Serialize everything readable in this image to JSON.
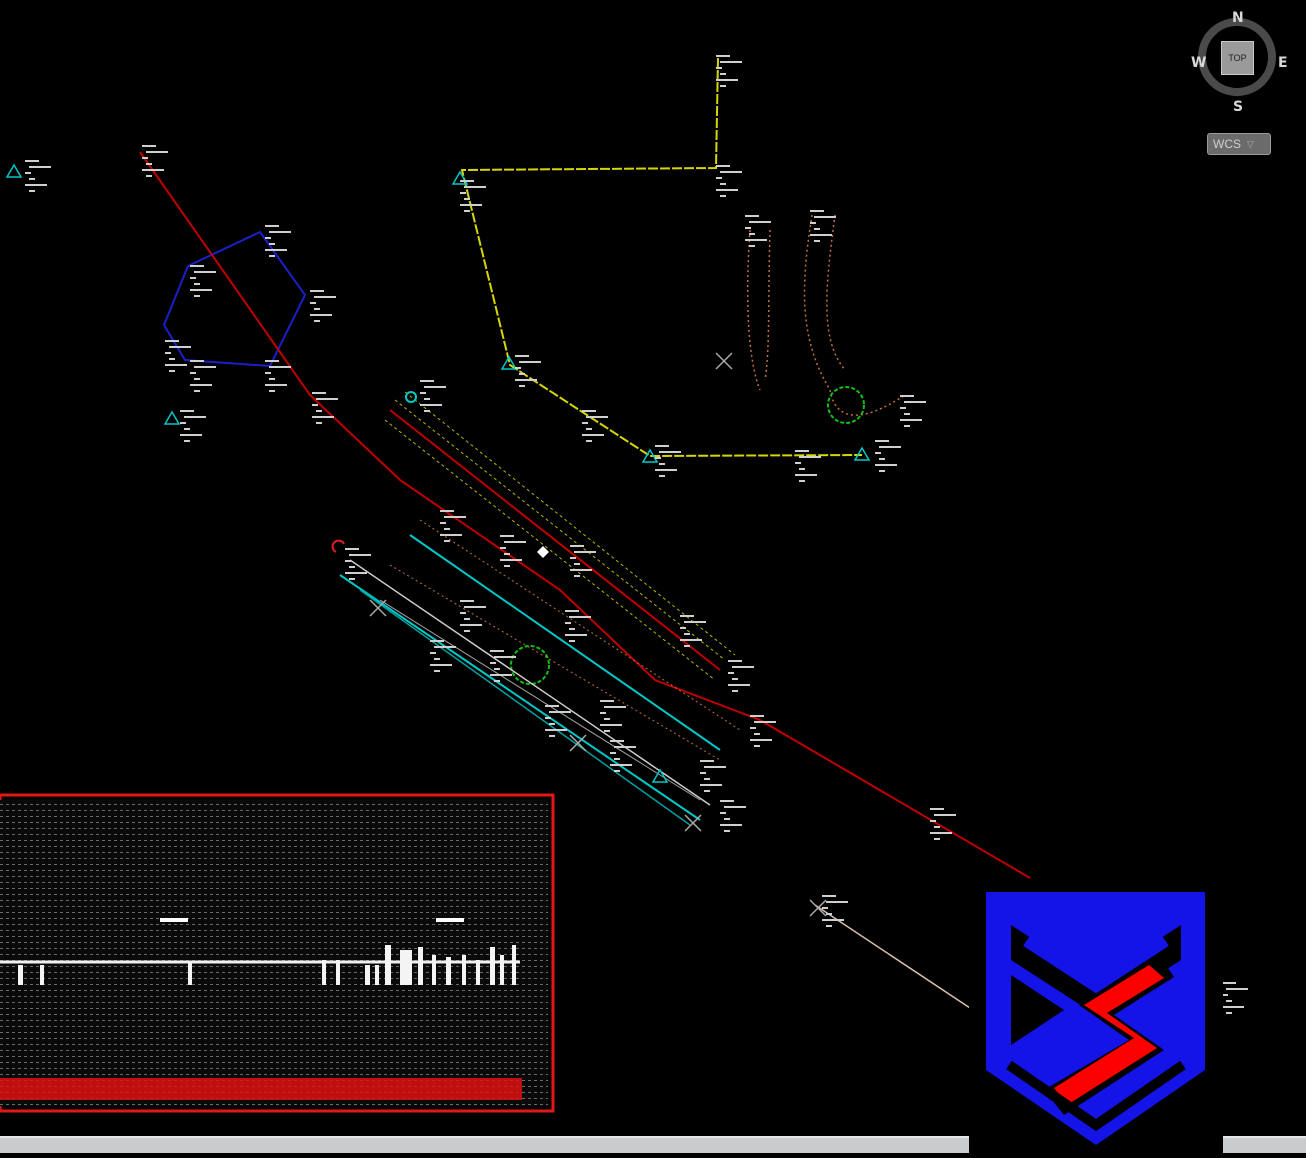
{
  "viewcube": {
    "north": "N",
    "south": "S",
    "east": "E",
    "west": "W",
    "face": "TOP"
  },
  "coordinate_system": {
    "label": "WCS"
  },
  "colors": {
    "background": "#000000",
    "blue_boundary": "#1a20c8",
    "red_route": "#c00000",
    "yellow_traverse": "#d6d600",
    "cyan": "#00c8c8",
    "green_circle": "#10c010",
    "orange_dotted": "#c07040",
    "logo_blue": "#1414e8",
    "logo_red": "#ff0000"
  },
  "logo": {
    "icon": "shield-ms-logo"
  }
}
